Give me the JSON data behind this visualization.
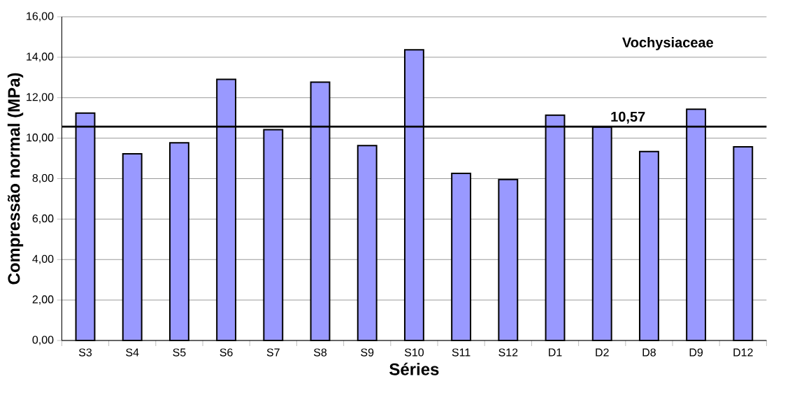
{
  "chart_data": {
    "type": "bar",
    "title": "Vochysiaceae",
    "xlabel": "Séries",
    "ylabel": "Compressão normal (MPa)",
    "categories": [
      "S3",
      "S4",
      "S5",
      "S6",
      "S7",
      "S8",
      "S9",
      "S10",
      "S11",
      "S12",
      "D1",
      "D2",
      "D8",
      "D9",
      "D12"
    ],
    "values": [
      11.24,
      9.23,
      9.77,
      12.91,
      10.42,
      12.77,
      9.63,
      14.37,
      8.26,
      7.96,
      11.14,
      10.55,
      9.34,
      11.43,
      9.57
    ],
    "color": "#9999ff",
    "ylim": [
      0,
      16
    ],
    "yticks": [
      {
        "value": 0,
        "label": "0,00"
      },
      {
        "value": 2,
        "label": "2,00"
      },
      {
        "value": 4,
        "label": "4,00"
      },
      {
        "value": 6,
        "label": "6,00"
      },
      {
        "value": 8,
        "label": "8,00"
      },
      {
        "value": 10,
        "label": "10,00"
      },
      {
        "value": 12,
        "label": "12,00"
      },
      {
        "value": 14,
        "label": "14,00"
      },
      {
        "value": 16,
        "label": "16,00"
      }
    ],
    "grid": "y",
    "ref_lines": [
      {
        "axis": "y",
        "value": 10.57,
        "label": "10,57",
        "color": "#000000"
      }
    ]
  }
}
